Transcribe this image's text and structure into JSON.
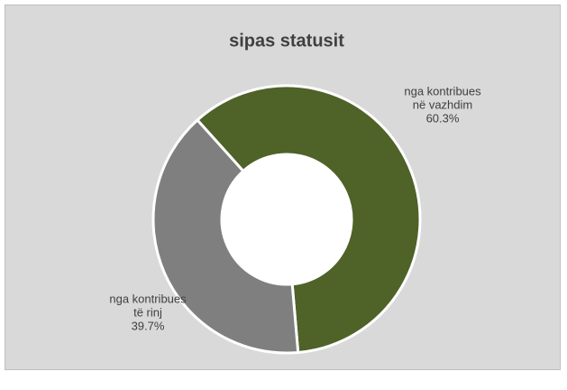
{
  "chart_data": {
    "type": "pie",
    "title": "sipas statusit",
    "categories": [
      "nga kontribues në vazhdim",
      "nga kontribues të rinj"
    ],
    "values": [
      60.3,
      39.7
    ],
    "value_labels": [
      "60.3%",
      "39.7%"
    ],
    "colors": [
      "#4f6228",
      "#7f7f7f"
    ]
  }
}
